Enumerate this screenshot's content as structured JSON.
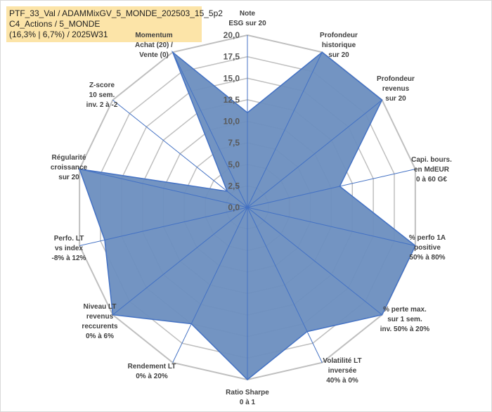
{
  "title_lines": [
    "PTF_33_Val / ADAMMixGV_5_MONDE_202503_15_5p2",
    "C4_Actions / 5_MONDE",
    "(16,3% | 6,7%) / 2025W31"
  ],
  "chart_data": {
    "type": "radar",
    "rlim": [
      0,
      20
    ],
    "ticks": [
      "0,0",
      "2,5",
      "5,0",
      "7,5",
      "10,0",
      "12,5",
      "15,0",
      "17,5",
      "20,0"
    ],
    "axes": [
      {
        "label": [
          "Note",
          "ESG sur 20"
        ],
        "value": 11
      },
      {
        "label": [
          "Profondeur",
          "historique",
          "sur 20"
        ],
        "value": 20
      },
      {
        "label": [
          "Profondeur",
          "revenus",
          "sur 20"
        ],
        "value": 20
      },
      {
        "label": [
          "Capi. bours.",
          "en MdEUR",
          "0 à 60 G€"
        ],
        "value": 11
      },
      {
        "label": [
          "% perfo 1A",
          "positive",
          "50% à 80%"
        ],
        "value": 20
      },
      {
        "label": [
          "% perte max.",
          "sur 1 sem.",
          "inv. 50% à 20%"
        ],
        "value": 20
      },
      {
        "label": [
          "Volatilité LT",
          "inversée",
          "40% à 0%"
        ],
        "value": 16
      },
      {
        "label": [
          "Ratio Sharpe",
          "0 à 1"
        ],
        "value": 20
      },
      {
        "label": [
          "Rendement LT",
          "0% à 20%"
        ],
        "value": 15
      },
      {
        "label": [
          "Niveau LT",
          "revenus",
          "reccurents",
          "0% à 6%"
        ],
        "value": 20
      },
      {
        "label": [
          "Perfo. LT",
          "vs index",
          "-8% à 12%"
        ],
        "value": 17
      },
      {
        "label": [
          "Régularité",
          "croissance",
          "sur 20"
        ],
        "value": 20
      },
      {
        "label": [
          "Z-score",
          "10 sem.",
          "inv. 2 à -2"
        ],
        "value": 3
      },
      {
        "label": [
          "Momentum",
          "Achat (20) /",
          "Vente (0)"
        ],
        "value": 20
      }
    ],
    "colors": {
      "fill": "#6c8ebf",
      "stroke": "#4472c4",
      "grid": "#bfbfbf",
      "momentum_box": "#fce4a8"
    }
  }
}
